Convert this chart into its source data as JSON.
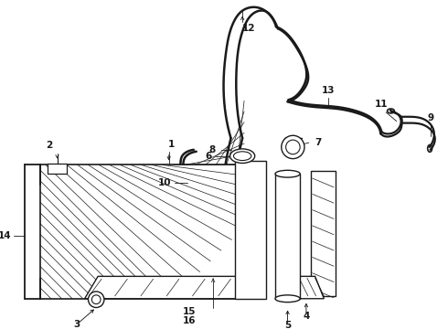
{
  "bg_color": "#ffffff",
  "line_color": "#1a1a1a",
  "figsize": [
    4.9,
    3.6
  ],
  "dpi": 100,
  "label_fontsize": 7.5
}
